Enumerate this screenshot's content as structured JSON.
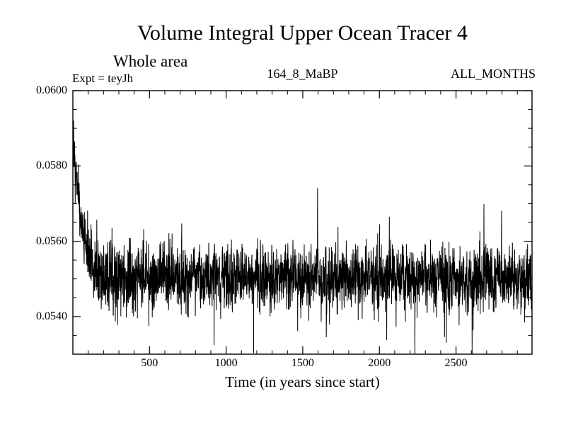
{
  "header": {
    "title": "Volume Integral Upper Ocean Tracer 4",
    "subtitle": "Whole area",
    "experiment_label": "Expt = teyJh",
    "center_label": "164_8_MaBP",
    "right_label": "ALL_MONTHS"
  },
  "chart_data": {
    "type": "line",
    "title": "Volume Integral Upper Ocean Tracer 4",
    "subtitle": "Whole area",
    "annotations": [
      "Expt = teyJh",
      "164_8_MaBP",
      "ALL_MONTHS"
    ],
    "xlabel": "Time (in years since start)",
    "ylabel": "",
    "xlim": [
      0,
      2996
    ],
    "ylim": [
      0.053,
      0.06
    ],
    "x_major_ticks": [
      500,
      1000,
      1500,
      2000,
      2500
    ],
    "x_tick_labels": [
      "500",
      "1000",
      "1500",
      "2000",
      "2500"
    ],
    "x_minor_interval": 100,
    "y_major_ticks": [
      0.054,
      0.056,
      0.058,
      0.06
    ],
    "y_tick_labels": [
      "0.0540",
      "0.0560",
      "0.0580",
      "0.0600"
    ],
    "y_minor_interval": 0.0005,
    "grid": false,
    "legend": null,
    "line_color": "#000000",
    "background_color": "#ffffff",
    "series_model": {
      "name": "Upper ocean tracer 4 volume integral",
      "shape": "noisy exponential decay to equilibrium",
      "initial_value": 0.0589,
      "equilibrium_value": 0.055,
      "decay_time_constant_years": 58,
      "noise_sd": 0.00042,
      "noise_ar1": 0.15,
      "spike_probability": 0.03,
      "spike_scale": 2.2,
      "n_points": 2996,
      "seed": 20
    }
  }
}
